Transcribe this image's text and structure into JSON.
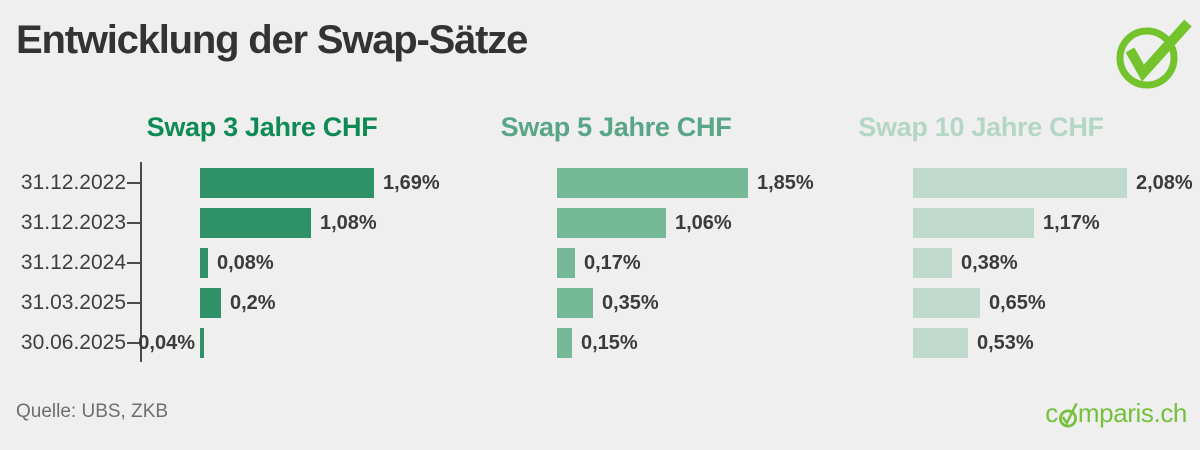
{
  "title": "Entwicklung der Swap-Sätze",
  "source": "Quelle: UBS, ZKB",
  "logo": {
    "prefix": "c",
    "suffix": "mparis.ch",
    "full_text": "comparis.ch",
    "color": "#75c13c"
  },
  "colors": {
    "background": "#efefef",
    "title": "#333333",
    "axis": "#4a4a4a",
    "value_label": "#3b3b3b",
    "date_label": "#3e3e3e",
    "source_text": "#6e6e6e",
    "icon_green": "#74c32d"
  },
  "chart_data": {
    "type": "bar",
    "orientation": "horizontal",
    "title": "Entwicklung der Swap-Sätze",
    "categories": [
      "31.12.2022",
      "31.12.2023",
      "31.12.2024",
      "31.03.2025",
      "30.06.2025"
    ],
    "series": [
      {
        "name": "Swap 3 Jahre CHF",
        "header_color": "#0e8a55",
        "bar_color": "#2e9167",
        "values": [
          1.69,
          1.08,
          0.08,
          0.2,
          0.04
        ],
        "labels": [
          "1,69%",
          "1,08%",
          "0,08%",
          "0,2%",
          "0,04%"
        ],
        "label_sides": [
          "right",
          "right",
          "right",
          "right",
          "left"
        ]
      },
      {
        "name": "Swap 5 Jahre CHF",
        "header_color": "#58a687",
        "bar_color": "#74b897",
        "values": [
          1.85,
          1.06,
          0.17,
          0.35,
          0.15
        ],
        "labels": [
          "1,85%",
          "1,06%",
          "0,17%",
          "0,35%",
          "0,15%"
        ],
        "label_sides": [
          "right",
          "right",
          "right",
          "right",
          "right"
        ]
      },
      {
        "name": "Swap 10 Jahre CHF",
        "header_color": "#b4d6c5",
        "bar_color": "#bfdacc",
        "values": [
          2.08,
          1.17,
          0.38,
          0.65,
          0.53
        ],
        "labels": [
          "2,08%",
          "1,17%",
          "0,38%",
          "0,65%",
          "0,53%"
        ],
        "label_sides": [
          "right",
          "right",
          "right",
          "right",
          "right"
        ]
      }
    ],
    "unit": "%",
    "xlim": [
      0,
      2.2
    ],
    "grid": false,
    "legend_position": "column-headers",
    "value_labels": "outside-end"
  }
}
